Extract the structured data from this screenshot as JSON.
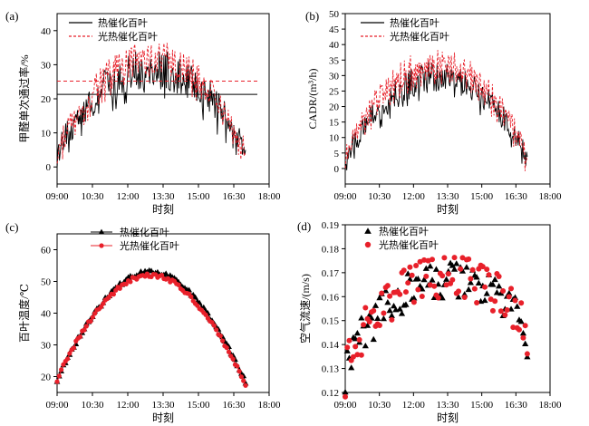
{
  "chart_data": [
    {
      "id": "a",
      "panel_label": "(a)",
      "type": "line",
      "xlabel": "时刻",
      "ylabel": "甲醛单次通过率/%",
      "x_ticks": [
        "09:00",
        "10:30",
        "12:00",
        "13:30",
        "15:00",
        "16:30",
        "18:00"
      ],
      "xlim": [
        "09:00",
        "18:00"
      ],
      "ylim": [
        -5,
        45
      ],
      "y_ticks": [
        0,
        10,
        20,
        30,
        40
      ],
      "legend_position": "top-center",
      "series": [
        {
          "name": "热催化百叶",
          "color": "#000000",
          "style": "solid",
          "x_range": [
            "09:00",
            "17:00"
          ],
          "start": 3,
          "peak": 29,
          "end": 4,
          "noise": 6,
          "mean_line": 21.3
        },
        {
          "name": "光热催化百叶",
          "color": "#e8202a",
          "style": "dashed",
          "x_range": [
            "09:00",
            "17:00"
          ],
          "start": 4,
          "peak": 32,
          "end": 4,
          "noise": 5,
          "mean_line": 25.2
        }
      ]
    },
    {
      "id": "b",
      "panel_label": "(b)",
      "type": "line",
      "xlabel": "时刻",
      "ylabel": "CADR/(m³/h)",
      "x_ticks": [
        "09:00",
        "10:30",
        "12:00",
        "13:30",
        "15:00",
        "16:30",
        "18:00"
      ],
      "xlim": [
        "09:00",
        "18:00"
      ],
      "ylim": [
        -5,
        50
      ],
      "y_ticks": [
        0,
        5,
        10,
        15,
        20,
        25,
        30,
        35,
        40,
        45,
        50
      ],
      "legend_position": "top-right",
      "series": [
        {
          "name": "热催化百叶",
          "color": "#000000",
          "style": "solid",
          "x_range": [
            "09:00",
            "17:00"
          ],
          "start": 2,
          "peak": 30,
          "end": 3,
          "noise": 5
        },
        {
          "name": "光热催化百叶",
          "color": "#e8202a",
          "style": "dashed",
          "x_range": [
            "09:00",
            "17:00"
          ],
          "start": 3,
          "peak": 34,
          "end": 3,
          "noise": 5
        }
      ]
    },
    {
      "id": "c",
      "panel_label": "(c)",
      "type": "line",
      "xlabel": "时刻",
      "ylabel": "百叶温度/℃",
      "x_ticks": [
        "09:00",
        "10:30",
        "12:00",
        "13:30",
        "15:00",
        "16:30",
        "18:00"
      ],
      "xlim": [
        "09:00",
        "18:00"
      ],
      "ylim": [
        15,
        65
      ],
      "y_ticks": [
        20,
        30,
        40,
        50,
        60
      ],
      "legend_position": "top-center",
      "series": [
        {
          "name": "热催化百叶",
          "color": "#000000",
          "marker": "triangle",
          "x_range": [
            "09:00",
            "17:00"
          ],
          "start": 19,
          "peak": 53,
          "end": 18
        },
        {
          "name": "光热催化百叶",
          "color": "#e8202a",
          "marker": "circle",
          "x_range": [
            "09:00",
            "17:00"
          ],
          "start": 19,
          "peak": 52,
          "end": 17
        }
      ]
    },
    {
      "id": "d",
      "panel_label": "(d)",
      "type": "scatter",
      "xlabel": "时刻",
      "ylabel": "空气流速/(m/s)",
      "x_ticks": [
        "09:00",
        "10:30",
        "12:00",
        "13:30",
        "15:00",
        "16:30",
        "18:00"
      ],
      "xlim": [
        "09:00",
        "18:00"
      ],
      "ylim": [
        0.12,
        0.19
      ],
      "y_ticks": [
        "0.12",
        "0.13",
        "0.14",
        "0.15",
        "0.16",
        "0.17",
        "0.18",
        "0.19"
      ],
      "legend_position": "top-left",
      "series": [
        {
          "name": "热催化百叶",
          "color": "#000000",
          "marker": "triangle",
          "x_range": [
            "09:00",
            "17:00"
          ],
          "start": 0.128,
          "peak": 0.166,
          "end": 0.142,
          "noise": 0.008
        },
        {
          "name": "光热催化百叶",
          "color": "#e8202a",
          "marker": "circle",
          "x_range": [
            "09:00",
            "17:00"
          ],
          "start": 0.127,
          "peak": 0.168,
          "end": 0.14,
          "noise": 0.009
        }
      ]
    }
  ]
}
